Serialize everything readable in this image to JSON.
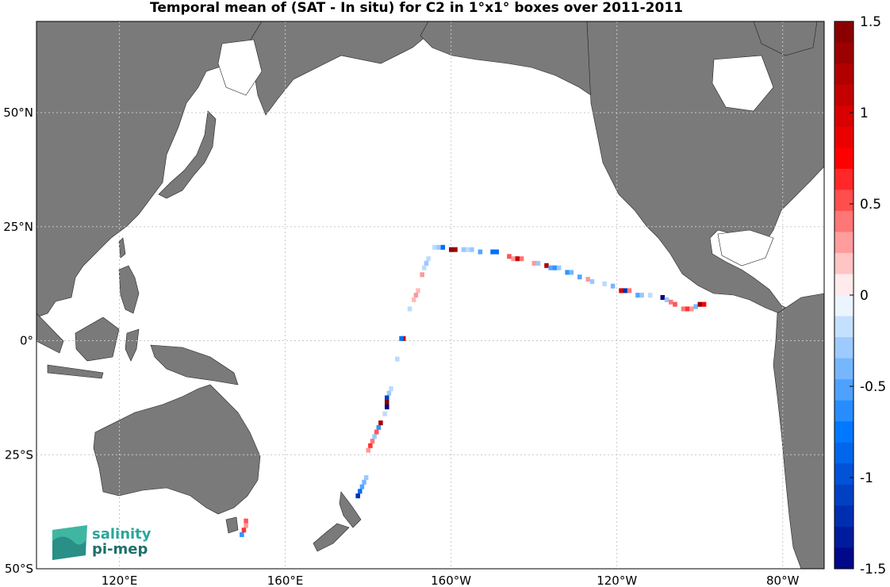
{
  "title": "Temporal mean of (SAT - In situ) for C2 in 1°x1° boxes over 2011-2011",
  "logo": {
    "line1": "salinity",
    "line2": "pi-mep"
  },
  "colors": {
    "land": "#7a7a7a",
    "ocean": "#ffffff",
    "grid": "#c8c8c8"
  },
  "map_data": {
    "lon_range": [
      100,
      290
    ],
    "lat_range": [
      -50,
      70
    ],
    "grid_lines": true,
    "lat_ticks": [
      {
        "value": 50,
        "label": "50°N"
      },
      {
        "value": 25,
        "label": "25°N"
      },
      {
        "value": 0,
        "label": "0°"
      },
      {
        "value": -25,
        "label": "25°S"
      },
      {
        "value": -50,
        "label": "50°S"
      }
    ],
    "lon_ticks": [
      {
        "value": 120,
        "label": "120°E"
      },
      {
        "value": 160,
        "label": "160°E"
      },
      {
        "value": 200,
        "label": "160°W"
      },
      {
        "value": 240,
        "label": "120°W"
      },
      {
        "value": 280,
        "label": "80°W"
      }
    ]
  },
  "chart_data": {
    "type": "heatmap",
    "title": "Temporal mean of (SAT - In situ) for C2 in 1°x1° boxes over 2011-2011",
    "colorbar": {
      "min": -1.5,
      "max": 1.5,
      "ticks": [
        {
          "value": 1.5,
          "label": "1.5"
        },
        {
          "value": 1,
          "label": "1"
        },
        {
          "value": 0.5,
          "label": "0.5"
        },
        {
          "value": 0,
          "label": "0"
        },
        {
          "value": -0.5,
          "label": "-0.5"
        },
        {
          "value": -1,
          "label": "-1"
        },
        {
          "value": -1.5,
          "label": "-1.5"
        }
      ],
      "levels": 26
    },
    "points": [
      {
        "lon": 196,
        "lat": 20.5,
        "value": -0.2
      },
      {
        "lon": 197,
        "lat": 20.5,
        "value": -0.3
      },
      {
        "lon": 198,
        "lat": 20.5,
        "value": -0.8
      },
      {
        "lon": 200,
        "lat": 20,
        "value": 1.4
      },
      {
        "lon": 201,
        "lat": 20,
        "value": 1.3
      },
      {
        "lon": 203,
        "lat": 20,
        "value": -0.3
      },
      {
        "lon": 204,
        "lat": 20,
        "value": -0.2
      },
      {
        "lon": 205,
        "lat": 20,
        "value": -0.3
      },
      {
        "lon": 207,
        "lat": 19.5,
        "value": -0.5
      },
      {
        "lon": 210,
        "lat": 19.5,
        "value": -0.8
      },
      {
        "lon": 211,
        "lat": 19.5,
        "value": -0.8
      },
      {
        "lon": 214,
        "lat": 18.5,
        "value": 0.5
      },
      {
        "lon": 215,
        "lat": 18,
        "value": 0.3
      },
      {
        "lon": 216,
        "lat": 18,
        "value": 1.1
      },
      {
        "lon": 217,
        "lat": 18,
        "value": 0.4
      },
      {
        "lon": 220,
        "lat": 17,
        "value": 0.3
      },
      {
        "lon": 221,
        "lat": 17,
        "value": -0.3
      },
      {
        "lon": 223,
        "lat": 16.5,
        "value": 1.2
      },
      {
        "lon": 224,
        "lat": 16,
        "value": -0.5
      },
      {
        "lon": 225,
        "lat": 16,
        "value": -0.6
      },
      {
        "lon": 226,
        "lat": 16,
        "value": -0.3
      },
      {
        "lon": 228,
        "lat": 15,
        "value": -0.6
      },
      {
        "lon": 229,
        "lat": 15,
        "value": -0.4
      },
      {
        "lon": 231,
        "lat": 14,
        "value": -0.5
      },
      {
        "lon": 233,
        "lat": 13.5,
        "value": 0.3
      },
      {
        "lon": 234,
        "lat": 13,
        "value": -0.3
      },
      {
        "lon": 237,
        "lat": 12.5,
        "value": -0.2
      },
      {
        "lon": 239,
        "lat": 12,
        "value": -0.4
      },
      {
        "lon": 241,
        "lat": 11,
        "value": 1.0
      },
      {
        "lon": 242,
        "lat": 11,
        "value": -1.2
      },
      {
        "lon": 243,
        "lat": 11,
        "value": 0.4
      },
      {
        "lon": 245,
        "lat": 10,
        "value": -0.5
      },
      {
        "lon": 246,
        "lat": 10,
        "value": -0.3
      },
      {
        "lon": 248,
        "lat": 10,
        "value": -0.2
      },
      {
        "lon": 251,
        "lat": 9.5,
        "value": -1.5
      },
      {
        "lon": 252,
        "lat": 9,
        "value": -0.3
      },
      {
        "lon": 253,
        "lat": 8.5,
        "value": 0.4
      },
      {
        "lon": 254,
        "lat": 8,
        "value": 0.5
      },
      {
        "lon": 256,
        "lat": 7,
        "value": 0.4
      },
      {
        "lon": 257,
        "lat": 7,
        "value": 0.6
      },
      {
        "lon": 258,
        "lat": 7,
        "value": 0.3
      },
      {
        "lon": 259,
        "lat": 7.5,
        "value": -0.4
      },
      {
        "lon": 260,
        "lat": 8,
        "value": 1.4
      },
      {
        "lon": 261,
        "lat": 8,
        "value": 0.8
      },
      {
        "lon": 194.5,
        "lat": 18,
        "value": -0.2
      },
      {
        "lon": 194,
        "lat": 17,
        "value": -0.3
      },
      {
        "lon": 193.5,
        "lat": 16,
        "value": -0.2
      },
      {
        "lon": 193,
        "lat": 14.5,
        "value": 0.3
      },
      {
        "lon": 192,
        "lat": 11,
        "value": 0.2
      },
      {
        "lon": 191.5,
        "lat": 10,
        "value": 0.3
      },
      {
        "lon": 191,
        "lat": 9,
        "value": 0.2
      },
      {
        "lon": 190,
        "lat": 7,
        "value": -0.2
      },
      {
        "lon": 188.5,
        "lat": 0.5,
        "value": 1.2
      },
      {
        "lon": 188,
        "lat": 0.5,
        "value": -0.8
      },
      {
        "lon": 187,
        "lat": -4,
        "value": -0.2
      },
      {
        "lon": 185.5,
        "lat": -10.5,
        "value": -0.2
      },
      {
        "lon": 185,
        "lat": -11.5,
        "value": -0.3
      },
      {
        "lon": 184.5,
        "lat": -12.5,
        "value": -1.1
      },
      {
        "lon": 184.5,
        "lat": -13.5,
        "value": 1.5
      },
      {
        "lon": 184.5,
        "lat": -14.5,
        "value": -1.5
      },
      {
        "lon": 184,
        "lat": -16,
        "value": -0.2
      },
      {
        "lon": 183,
        "lat": -18,
        "value": 1.3
      },
      {
        "lon": 182.5,
        "lat": -19,
        "value": -0.6
      },
      {
        "lon": 182,
        "lat": -20,
        "value": 0.5
      },
      {
        "lon": 181.5,
        "lat": -21,
        "value": -0.3
      },
      {
        "lon": 181,
        "lat": -22,
        "value": 0.4
      },
      {
        "lon": 180.5,
        "lat": -23,
        "value": 0.6
      },
      {
        "lon": 180,
        "lat": -24,
        "value": 0.3
      },
      {
        "lon": 179.5,
        "lat": -30,
        "value": -0.3
      },
      {
        "lon": 179,
        "lat": -31,
        "value": -0.4
      },
      {
        "lon": 178.5,
        "lat": -32,
        "value": -0.5
      },
      {
        "lon": 178,
        "lat": -33,
        "value": -0.8
      },
      {
        "lon": 177.5,
        "lat": -34,
        "value": -1.2
      },
      {
        "lon": 150.5,
        "lat": -39.5,
        "value": 0.5
      },
      {
        "lon": 150.5,
        "lat": -40.5,
        "value": 0.3
      },
      {
        "lon": 150,
        "lat": -41.5,
        "value": 0.6
      },
      {
        "lon": 149.5,
        "lat": -42.5,
        "value": -0.6
      }
    ]
  }
}
